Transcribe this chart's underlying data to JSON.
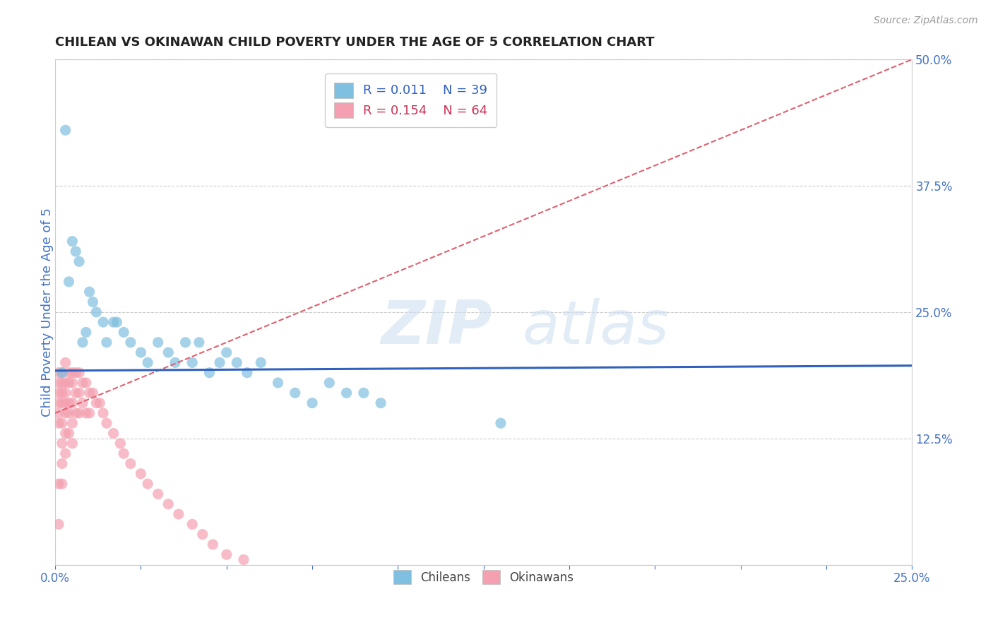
{
  "title": "CHILEAN VS OKINAWAN CHILD POVERTY UNDER THE AGE OF 5 CORRELATION CHART",
  "source_text": "Source: ZipAtlas.com",
  "ylabel": "Child Poverty Under the Age of 5",
  "xlim": [
    0.0,
    0.25
  ],
  "ylim": [
    0.0,
    0.5
  ],
  "xticks": [
    0.0,
    0.025,
    0.05,
    0.075,
    0.1,
    0.125,
    0.15,
    0.175,
    0.2,
    0.225,
    0.25
  ],
  "xticklabels": [
    "0.0%",
    "",
    "",
    "",
    "",
    "",
    "",
    "",
    "",
    "",
    "25.0%"
  ],
  "yticks_right": [
    0.0,
    0.125,
    0.25,
    0.375,
    0.5
  ],
  "yticklabels_right": [
    "",
    "12.5%",
    "25.0%",
    "37.5%",
    "50.0%"
  ],
  "chilean_color": "#7fbfdf",
  "okinawan_color": "#f4a0b0",
  "trend_chilean_color": "#3060c0",
  "trend_okinawan_color": "#e06070",
  "background_color": "#ffffff",
  "grid_color": "#cccccc",
  "axis_label_color": "#4472c4",
  "tick_color": "#4472c4",
  "legend_R_chilean": "0.011",
  "legend_N_chilean": "39",
  "legend_R_okinawan": "0.154",
  "legend_N_okinawan": "64",
  "watermark_text": "ZIPatlas",
  "chilean_trend_x": [
    0.0,
    0.25
  ],
  "chilean_trend_y": [
    0.192,
    0.197
  ],
  "okinawan_trend_x": [
    0.0,
    0.25
  ],
  "okinawan_trend_y": [
    0.15,
    0.5
  ],
  "chilean_x": [
    0.003,
    0.004,
    0.005,
    0.006,
    0.007,
    0.008,
    0.009,
    0.01,
    0.011,
    0.012,
    0.014,
    0.015,
    0.017,
    0.018,
    0.02,
    0.022,
    0.025,
    0.027,
    0.03,
    0.033,
    0.035,
    0.038,
    0.04,
    0.042,
    0.045,
    0.048,
    0.05,
    0.053,
    0.056,
    0.06,
    0.065,
    0.07,
    0.075,
    0.08,
    0.085,
    0.09,
    0.095,
    0.13,
    0.002
  ],
  "chilean_y": [
    0.43,
    0.28,
    0.32,
    0.31,
    0.3,
    0.22,
    0.23,
    0.27,
    0.26,
    0.25,
    0.24,
    0.22,
    0.24,
    0.24,
    0.23,
    0.22,
    0.21,
    0.2,
    0.22,
    0.21,
    0.2,
    0.22,
    0.2,
    0.22,
    0.19,
    0.2,
    0.21,
    0.2,
    0.19,
    0.2,
    0.18,
    0.17,
    0.16,
    0.18,
    0.17,
    0.17,
    0.16,
    0.14,
    0.19
  ],
  "okinawan_x": [
    0.001,
    0.001,
    0.001,
    0.001,
    0.001,
    0.001,
    0.001,
    0.001,
    0.002,
    0.002,
    0.002,
    0.002,
    0.002,
    0.002,
    0.002,
    0.002,
    0.003,
    0.003,
    0.003,
    0.003,
    0.003,
    0.003,
    0.003,
    0.004,
    0.004,
    0.004,
    0.004,
    0.004,
    0.005,
    0.005,
    0.005,
    0.005,
    0.005,
    0.006,
    0.006,
    0.006,
    0.007,
    0.007,
    0.007,
    0.008,
    0.008,
    0.009,
    0.009,
    0.01,
    0.01,
    0.011,
    0.012,
    0.013,
    0.014,
    0.015,
    0.017,
    0.019,
    0.02,
    0.022,
    0.025,
    0.027,
    0.03,
    0.033,
    0.036,
    0.04,
    0.043,
    0.046,
    0.05,
    0.055
  ],
  "okinawan_y": [
    0.19,
    0.18,
    0.17,
    0.16,
    0.15,
    0.14,
    0.08,
    0.04,
    0.19,
    0.18,
    0.17,
    0.16,
    0.14,
    0.12,
    0.1,
    0.08,
    0.2,
    0.18,
    0.17,
    0.16,
    0.15,
    0.13,
    0.11,
    0.19,
    0.18,
    0.16,
    0.15,
    0.13,
    0.19,
    0.18,
    0.16,
    0.14,
    0.12,
    0.19,
    0.17,
    0.15,
    0.19,
    0.17,
    0.15,
    0.18,
    0.16,
    0.18,
    0.15,
    0.17,
    0.15,
    0.17,
    0.16,
    0.16,
    0.15,
    0.14,
    0.13,
    0.12,
    0.11,
    0.1,
    0.09,
    0.08,
    0.07,
    0.06,
    0.05,
    0.04,
    0.03,
    0.02,
    0.01,
    0.005
  ]
}
